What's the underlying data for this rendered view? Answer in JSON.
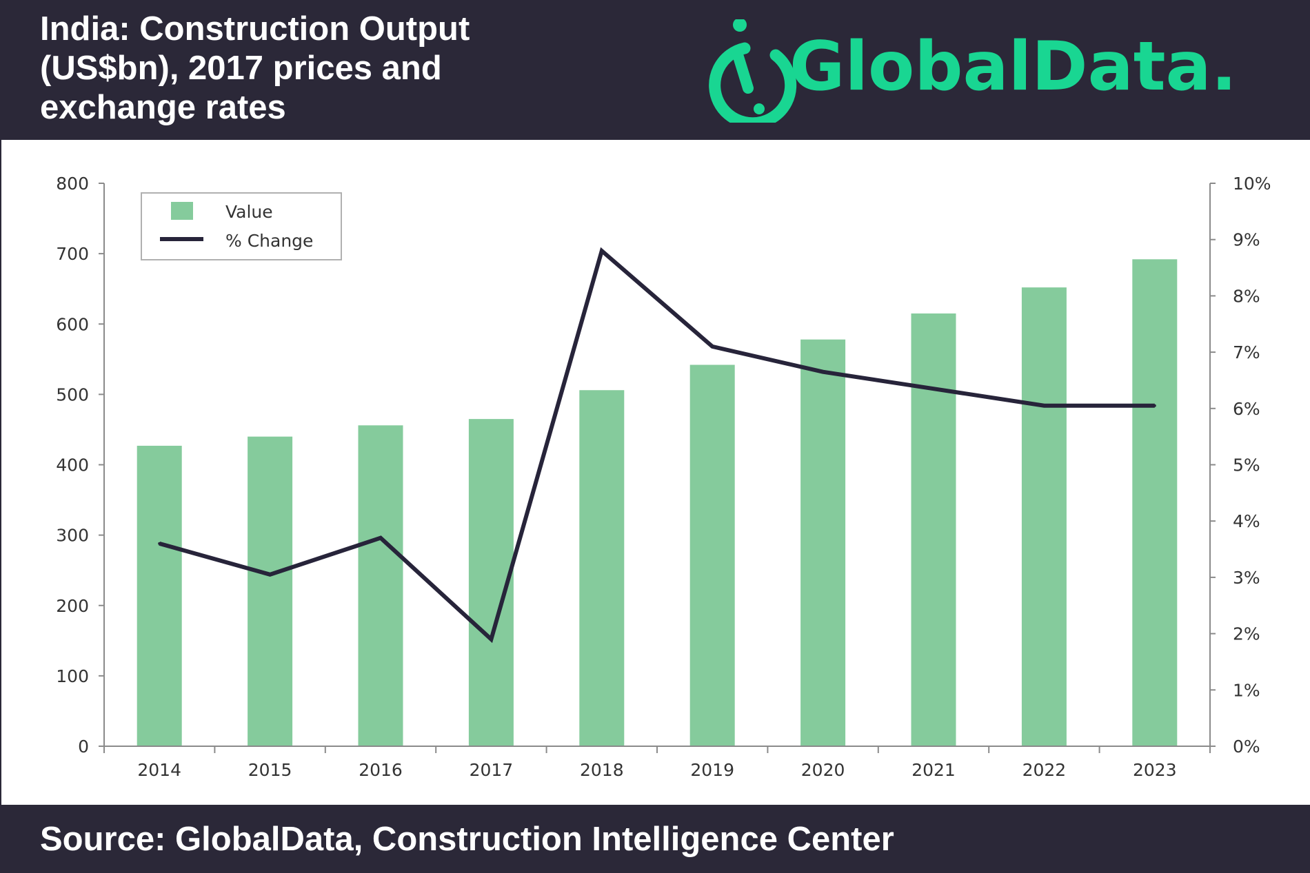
{
  "header": {
    "title": "India: Construction Output\n(US$bn), 2017 prices and\nexchange rates",
    "brand": "GlobalData."
  },
  "footer": {
    "source": "Source: GlobalData, Construction Intelligence Center"
  },
  "colors": {
    "bar": "#85cb9c",
    "line": "#27243a",
    "brand": "#19d692",
    "dark": "#2b2838"
  },
  "chart_data": {
    "type": "bar",
    "title": "",
    "xlabel": "",
    "ylabel": "",
    "categories": [
      "2014",
      "2015",
      "2016",
      "2017",
      "2018",
      "2019",
      "2020",
      "2021",
      "2022",
      "2023"
    ],
    "series": [
      {
        "name": "Value",
        "type": "bar",
        "axis": "left",
        "values": [
          427,
          440,
          456,
          465,
          506,
          542,
          578,
          615,
          652,
          692
        ]
      },
      {
        "name": "% Change",
        "type": "line",
        "axis": "right",
        "values": [
          3.6,
          3.05,
          3.7,
          1.9,
          8.8,
          7.1,
          6.65,
          6.35,
          6.05,
          6.05
        ]
      }
    ],
    "ylim": [
      0,
      800
    ],
    "y_ticks": [
      "0",
      "100",
      "200",
      "300",
      "400",
      "500",
      "600",
      "700",
      "800"
    ],
    "y2lim": [
      0,
      10
    ],
    "y2_ticks": [
      "0%",
      "1%",
      "2%",
      "3%",
      "4%",
      "5%",
      "6%",
      "7%",
      "8%",
      "9%",
      "10%"
    ],
    "legend": "top-left",
    "grid": false
  }
}
